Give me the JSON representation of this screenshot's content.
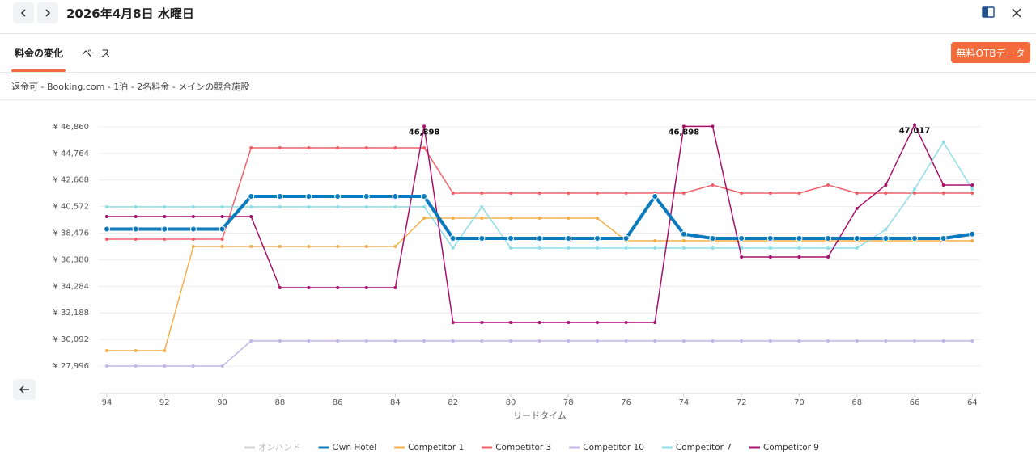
{
  "header": {
    "title": "2026年4月8日 水曜日"
  },
  "tabs": [
    "料金の変化",
    "ベース"
  ],
  "button": "無料OTBデータ",
  "subtitle": "返金可 - Booking.com - 1泊 - 2名料金 - メインの競合施設",
  "chart_data": {
    "type": "line",
    "x_label": "リードタイム",
    "x": [
      94,
      93,
      92,
      91,
      90,
      89,
      88,
      87,
      86,
      85,
      84,
      83,
      82,
      81,
      80,
      79,
      78,
      77,
      76,
      75,
      74,
      73,
      72,
      71,
      70,
      69,
      68,
      67,
      66,
      65,
      64
    ],
    "xlim": [
      94.28,
      63.7
    ],
    "xticks": [
      94,
      92,
      90,
      88,
      86,
      84,
      82,
      80,
      78,
      76,
      74,
      72,
      70,
      68,
      66,
      64
    ],
    "ylim": [
      25830,
      47940
    ],
    "yticks": [
      {
        "value": 27996,
        "label": "¥ 27,996"
      },
      {
        "value": 30092,
        "label": "¥ 30,092"
      },
      {
        "value": 32188,
        "label": "¥ 32,188"
      },
      {
        "value": 34284,
        "label": "¥ 34,284"
      },
      {
        "value": 36380,
        "label": "¥ 36,380"
      },
      {
        "value": 38476,
        "label": "¥ 38,476"
      },
      {
        "value": 40572,
        "label": "¥ 40,572"
      },
      {
        "value": 42668,
        "label": "¥ 42,668"
      },
      {
        "value": 44764,
        "label": "¥ 44,764"
      },
      {
        "value": 46860,
        "label": "¥ 46,860"
      }
    ],
    "grid": true,
    "legend": "bottom",
    "series": [
      {
        "name": "オンハンド",
        "color": "#d4d4d4",
        "width": 1.5,
        "values": [
          null,
          null,
          null,
          null,
          null,
          null,
          null,
          null,
          null,
          null,
          null,
          null,
          null,
          null,
          null,
          null,
          null,
          null,
          null,
          null,
          null,
          null,
          null,
          null,
          null,
          null,
          null,
          null,
          null,
          null,
          null
        ]
      },
      {
        "name": "Own Hotel",
        "color": "#0a7abf",
        "width": 4,
        "values": [
          38800,
          38800,
          38800,
          38800,
          38800,
          41380,
          41380,
          41380,
          41380,
          41380,
          41380,
          41380,
          38066,
          38066,
          38066,
          38066,
          38066,
          38066,
          38066,
          41380,
          38400,
          38066,
          38066,
          38066,
          38066,
          38066,
          38066,
          38066,
          38066,
          38066,
          38400
        ]
      },
      {
        "name": "Competitor 1",
        "color": "#f5b04a",
        "width": 1.5,
        "values": [
          29208,
          29208,
          29208,
          37428,
          37428,
          37428,
          37428,
          37428,
          37428,
          37428,
          37428,
          39659,
          39659,
          39659,
          39659,
          39659,
          39659,
          39659,
          37875,
          37875,
          37875,
          37875,
          37875,
          37875,
          37875,
          37875,
          37875,
          37875,
          37875,
          37875,
          37875
        ]
      },
      {
        "name": "Competitor 3",
        "color": "#f0606a",
        "width": 1.5,
        "values": [
          38002,
          38002,
          38002,
          38002,
          38002,
          45203,
          45203,
          45203,
          45203,
          45203,
          45203,
          45203,
          41634,
          41634,
          41634,
          41634,
          41634,
          41634,
          41634,
          41634,
          41634,
          42272,
          41634,
          41634,
          41634,
          42272,
          41634,
          41634,
          41634,
          41634,
          41634
        ]
      },
      {
        "name": "Competitor 10",
        "color": "#c2b6e6",
        "width": 1.5,
        "values": [
          27996,
          27996,
          27996,
          27996,
          27996,
          29972,
          29972,
          29972,
          29972,
          29972,
          29972,
          29972,
          29972,
          29972,
          29972,
          29972,
          29972,
          29972,
          29972,
          29972,
          29972,
          29972,
          29972,
          29972,
          29972,
          29972,
          29972,
          29972,
          29972,
          29972,
          29972
        ]
      },
      {
        "name": "Competitor 7",
        "color": "#8fdde6",
        "width": 1.5,
        "values": [
          40551,
          40551,
          40551,
          40551,
          40551,
          40551,
          40551,
          40551,
          40551,
          40551,
          40551,
          40551,
          37302,
          40551,
          37302,
          37302,
          37302,
          37302,
          37302,
          37302,
          37302,
          37302,
          37302,
          37302,
          37302,
          37302,
          37302,
          38767,
          41953,
          45649,
          41953
        ]
      },
      {
        "name": "Competitor 9",
        "color": "#a8106e",
        "width": 1.5,
        "values": [
          39786,
          39786,
          39786,
          39786,
          39786,
          39786,
          34178,
          34178,
          34178,
          34178,
          34178,
          46898,
          31438,
          31438,
          31438,
          31438,
          31438,
          31438,
          31438,
          31438,
          46898,
          46898,
          36600,
          36600,
          36600,
          36600,
          40423,
          42272,
          47017,
          42272,
          42272
        ],
        "value_labels": [
          null,
          null,
          null,
          null,
          null,
          null,
          null,
          null,
          null,
          null,
          null,
          "46,898",
          null,
          null,
          null,
          null,
          null,
          null,
          null,
          null,
          "46,898",
          null,
          null,
          null,
          null,
          null,
          null,
          null,
          "47,017",
          null,
          null
        ]
      }
    ]
  }
}
